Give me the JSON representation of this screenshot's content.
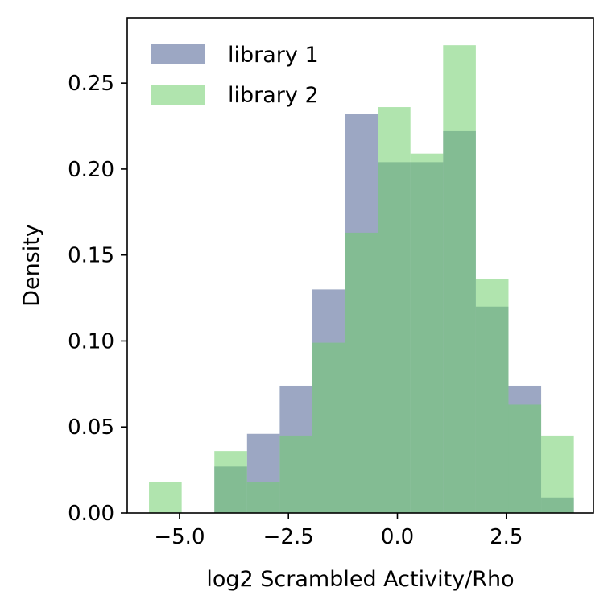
{
  "chart_data": {
    "type": "bar",
    "subtype": "overlapping-histogram",
    "xlabel": "log2 Scrambled Activity/Rho",
    "ylabel": "Density",
    "xlim": [
      -6.2,
      4.5
    ],
    "ylim": [
      0,
      0.288
    ],
    "xticks": [
      -5.0,
      -2.5,
      0.0,
      2.5
    ],
    "xtick_labels": [
      "−5.0",
      "−2.5",
      "0.0",
      "2.5"
    ],
    "yticks": [
      0.0,
      0.05,
      0.1,
      0.15,
      0.2,
      0.25
    ],
    "ytick_labels": [
      "0.00",
      "0.05",
      "0.10",
      "0.15",
      "0.20",
      "0.25"
    ],
    "bin_edges": [
      -5.7,
      -4.95,
      -4.2,
      -3.45,
      -2.7,
      -1.95,
      -1.2,
      -0.45,
      0.3,
      1.05,
      1.8,
      2.55,
      3.3,
      4.05
    ],
    "series": [
      {
        "name": "library 1",
        "color": "#4a5f92",
        "alpha": 0.55,
        "values": [
          0.0,
          0.0,
          0.027,
          0.046,
          0.074,
          0.13,
          0.232,
          0.204,
          0.204,
          0.222,
          0.12,
          0.074,
          0.009
        ]
      },
      {
        "name": "library 2",
        "color": "#6fcd6b",
        "alpha": 0.55,
        "values": [
          0.018,
          0.0,
          0.036,
          0.018,
          0.045,
          0.099,
          0.163,
          0.236,
          0.209,
          0.272,
          0.136,
          0.063,
          0.045
        ]
      }
    ],
    "legend_position": "top-left",
    "grid": false
  }
}
